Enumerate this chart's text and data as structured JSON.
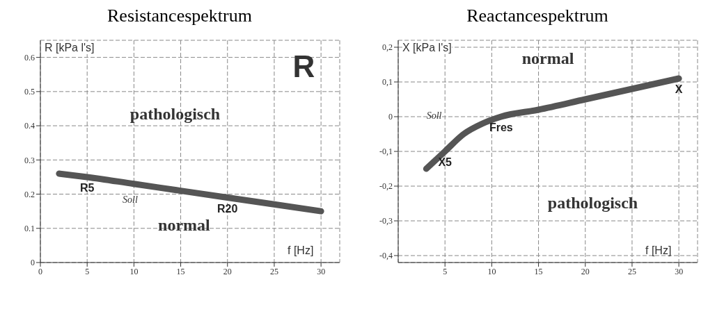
{
  "chart_data": [
    {
      "type": "line",
      "title": "Resistancespektrum",
      "ylabel": "R [kPa l's]",
      "xlabel": "f [Hz]",
      "xlim": [
        0,
        32
      ],
      "xticks": [
        0,
        5,
        10,
        15,
        20,
        25,
        30
      ],
      "ylim": [
        0,
        0.65
      ],
      "yticks": [
        0,
        0.1,
        0.2,
        0.3,
        0.4,
        0.5,
        0.6
      ],
      "grid": true,
      "series": [
        {
          "color": "#555555",
          "x": [
            2,
            5,
            10,
            15,
            20,
            25,
            30
          ],
          "values": [
            0.26,
            0.25,
            0.23,
            0.21,
            0.19,
            0.17,
            0.15
          ]
        }
      ],
      "annotations": [
        "R",
        "pathologisch",
        "normal",
        "Soll",
        {
          "text": "R5",
          "x": 5,
          "y": 0.25
        },
        {
          "text": "R20",
          "x": 20,
          "y": 0.19
        }
      ]
    },
    {
      "type": "line",
      "title": "Reactancespektrum",
      "ylabel": "X [kPa l's]",
      "xlabel": "f [Hz]",
      "xlim": [
        0,
        32
      ],
      "xticks": [
        5,
        10,
        15,
        20,
        25,
        30
      ],
      "ylim": [
        -0.42,
        0.22
      ],
      "yticks": [
        {
          "value": -0.4,
          "label": "-0,4"
        },
        {
          "value": -0.3,
          "label": "-0,3"
        },
        {
          "value": -0.2,
          "label": "-0,2"
        },
        {
          "value": -0.1,
          "label": "-0,1"
        },
        0,
        {
          "value": 0.1,
          "label": "0,1"
        },
        {
          "value": 0.2,
          "label": "0,2"
        }
      ],
      "grid": true,
      "series": [
        {
          "color": "#555555",
          "x": [
            3,
            5,
            7,
            9,
            11,
            15,
            20,
            25,
            30
          ],
          "values": [
            -0.15,
            -0.1,
            -0.05,
            -0.02,
            0,
            0.02,
            0.05,
            0.08,
            0.11
          ]
        }
      ],
      "annotations": [
        "normal",
        "pathologisch",
        "Soll",
        {
          "text": "X",
          "x": 30,
          "y": 0.11
        },
        {
          "text": "X5",
          "x": 5,
          "y": -0.1
        },
        {
          "text": "Fres",
          "x": 11,
          "y": 0
        }
      ]
    }
  ]
}
